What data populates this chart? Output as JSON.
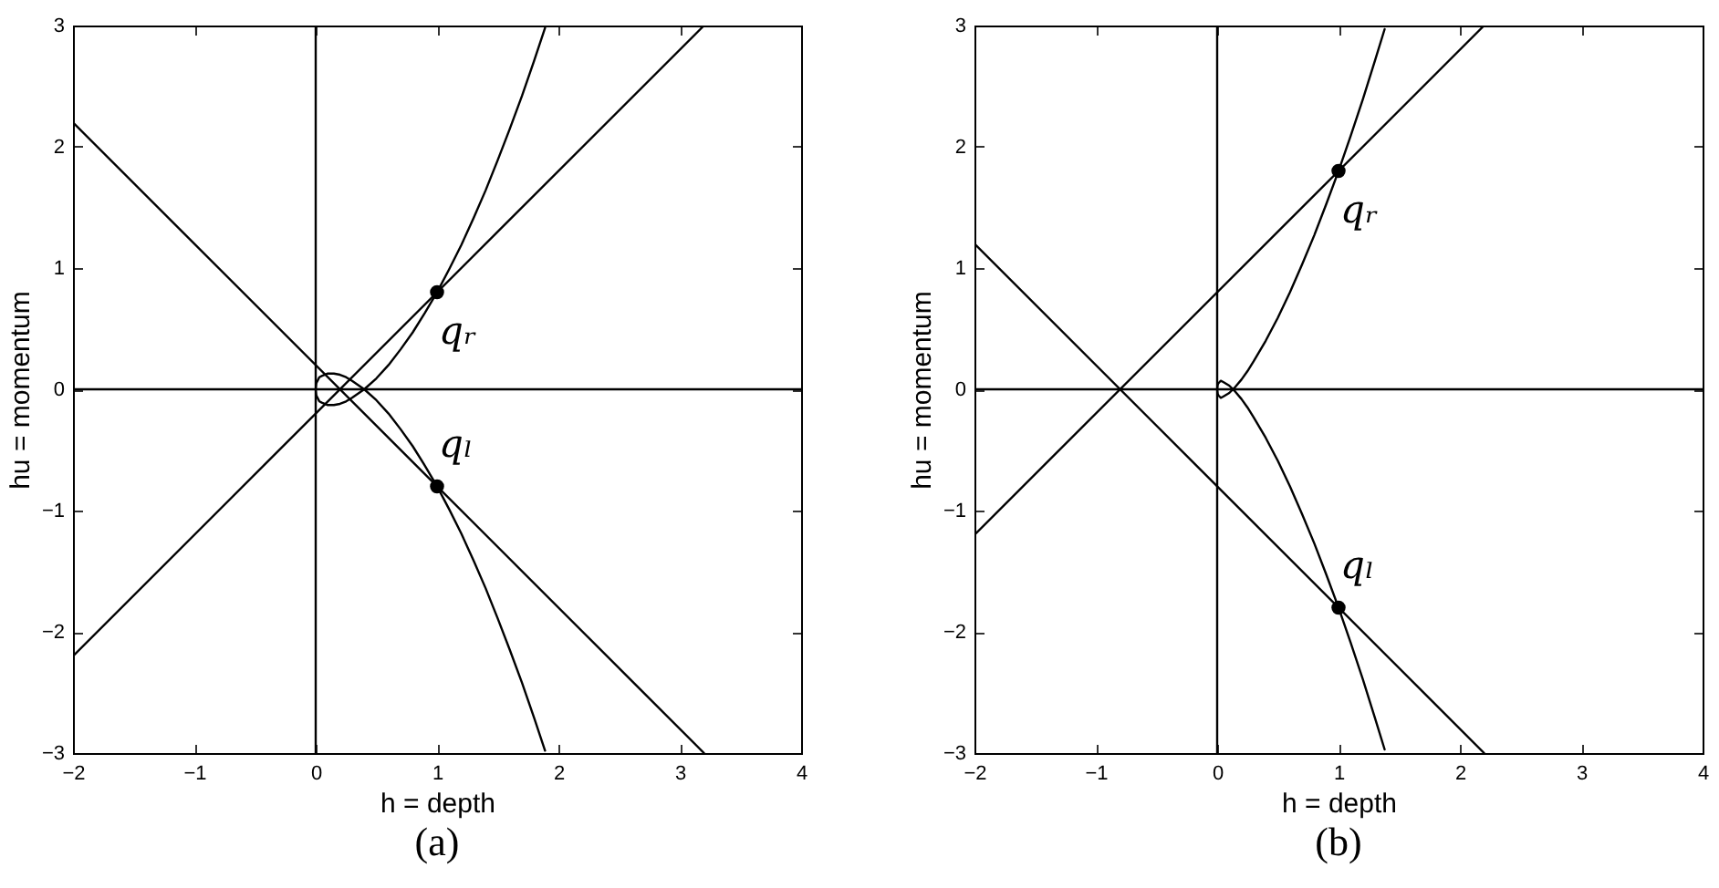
{
  "chart_data": [
    {
      "type": "line",
      "title": "(a)",
      "xlabel": "h = depth",
      "ylabel": "hu = momentum",
      "xlim": [
        -2,
        4
      ],
      "ylim": [
        -3,
        3
      ],
      "xticks": [
        -2,
        -1,
        0,
        1,
        2,
        3,
        4
      ],
      "yticks": [
        -3,
        -2,
        -1,
        0,
        1,
        2,
        3
      ],
      "series": [
        {
          "color": "#000000",
          "x": [
            -2,
            4
          ],
          "values": [
            0,
            0
          ]
        },
        {
          "color": "#000000",
          "x": [
            0,
            0
          ],
          "values": [
            -3,
            3
          ]
        },
        {
          "color": "#000000",
          "x": [
            -2,
            3.2
          ],
          "values": [
            -2.2,
            3
          ]
        },
        {
          "color": "#000000",
          "x": [
            -2,
            3.2
          ],
          "values": [
            2.2,
            -3
          ]
        },
        {
          "color": "#000000",
          "x": [
            1.89,
            1.8,
            1.7,
            1.6,
            1.5,
            1.4,
            1.3,
            1.2,
            1.1,
            1,
            0.9,
            0.8,
            0.7,
            0.6,
            0.5,
            0.4,
            0.3,
            0.25,
            0.2,
            0.15,
            0.1,
            0.05,
            0.03,
            0.02,
            0.01,
            0.005,
            0,
            0.005,
            0.01,
            0.02,
            0.03,
            0.05,
            0.1,
            0.15,
            0.2,
            0.25,
            0.3,
            0.4,
            0.5,
            0.6,
            0.7,
            0.8,
            0.9,
            1,
            1.1,
            1.2,
            1.3,
            1.4,
            1.5,
            1.6,
            1.7,
            1.8,
            1.89
          ],
          "values": [
            2.98,
            2.71,
            2.42,
            2.15,
            1.89,
            1.64,
            1.41,
            1.19,
            0.99,
            0.8,
            0.63,
            0.47,
            0.33,
            0.2,
            0.09,
            0,
            -0.07,
            -0.1,
            -0.12,
            -0.13,
            -0.13,
            -0.11,
            -0.1,
            -0.08,
            -0.06,
            -0.05,
            0,
            0.05,
            0.06,
            0.08,
            0.1,
            0.11,
            0.13,
            0.13,
            0.12,
            0.1,
            0.07,
            0,
            -0.09,
            -0.2,
            -0.33,
            -0.47,
            -0.63,
            -0.8,
            -0.99,
            -1.19,
            -1.41,
            -1.64,
            -1.89,
            -2.15,
            -2.42,
            -2.71,
            -2.98
          ]
        },
        {
          "type": "scatter",
          "name": "qᵣ",
          "color": "#000000",
          "marker": "circle",
          "x": [
            1
          ],
          "values": [
            0.8
          ]
        },
        {
          "type": "scatter",
          "name": "qₗ",
          "color": "#000000",
          "marker": "circle",
          "x": [
            1
          ],
          "values": [
            -0.8
          ]
        }
      ]
    },
    {
      "type": "line",
      "title": "(b)",
      "xlabel": "h = depth",
      "ylabel": "hu = momentum",
      "xlim": [
        -2,
        4
      ],
      "ylim": [
        -3,
        3
      ],
      "xticks": [
        -2,
        -1,
        0,
        1,
        2,
        3,
        4
      ],
      "yticks": [
        -3,
        -2,
        -1,
        0,
        1,
        2,
        3
      ],
      "series": [
        {
          "color": "#000000",
          "x": [
            -2,
            4
          ],
          "values": [
            0,
            0
          ]
        },
        {
          "color": "#000000",
          "x": [
            0,
            0
          ],
          "values": [
            -3,
            3
          ]
        },
        {
          "color": "#000000",
          "x": [
            -2,
            2.2
          ],
          "values": [
            -1.2,
            3
          ]
        },
        {
          "color": "#000000",
          "x": [
            -2,
            2.2
          ],
          "values": [
            1.2,
            -3
          ]
        },
        {
          "color": "#000000",
          "x": [
            1.38,
            1.3,
            1.2,
            1.1,
            1,
            0.9,
            0.8,
            0.7,
            0.6,
            0.5,
            0.4,
            0.3,
            0.25,
            0.2,
            0.15,
            0.1,
            0.05,
            0.03,
            0.02,
            0.01,
            0.005,
            0,
            0.005,
            0.01,
            0.02,
            0.03,
            0.05,
            0.1,
            0.15,
            0.2,
            0.25,
            0.3,
            0.4,
            0.5,
            0.6,
            0.7,
            0.8,
            0.9,
            1,
            1.1,
            1.2,
            1.3,
            1.38
          ],
          "values": [
            2.97,
            2.71,
            2.39,
            2.09,
            1.8,
            1.53,
            1.27,
            1.03,
            0.8,
            0.59,
            0.4,
            0.23,
            0.15,
            0.08,
            0.02,
            -0.03,
            -0.06,
            -0.07,
            -0.06,
            -0.05,
            -0.04,
            0,
            0.04,
            0.05,
            0.06,
            0.07,
            0.06,
            0.03,
            -0.02,
            -0.08,
            -0.15,
            -0.23,
            -0.4,
            -0.59,
            -0.8,
            -1.03,
            -1.27,
            -1.53,
            -1.8,
            -2.09,
            -2.39,
            -2.71,
            -2.97
          ]
        },
        {
          "type": "scatter",
          "name": "qᵣ",
          "color": "#000000",
          "marker": "circle",
          "x": [
            1
          ],
          "values": [
            1.8
          ]
        },
        {
          "type": "scatter",
          "name": "qₗ",
          "color": "#000000",
          "marker": "circle",
          "x": [
            1
          ],
          "values": [
            -1.8
          ]
        }
      ]
    }
  ]
}
